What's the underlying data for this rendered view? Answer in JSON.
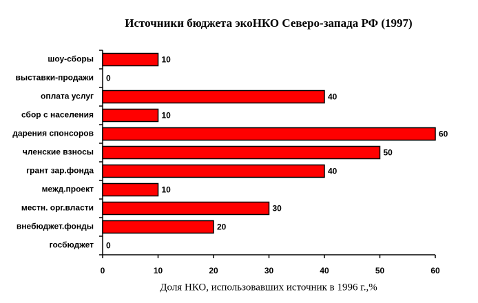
{
  "chart_data": {
    "type": "bar",
    "orientation": "horizontal",
    "title": "Источники бюджета экоНКО Северо-запада РФ (1997)",
    "x_label": "Доля НКО, использовавших источник в 1996 г.,%",
    "categories": [
      "шоу-сборы",
      "выставки-продажи",
      "оплата услуг",
      "сбор с населения",
      "дарения спонсоров",
      "членские взносы",
      "грант зар.фонда",
      "межд.проект",
      "местн. орг.власти",
      "внебюджет.фонды",
      "госбюджет"
    ],
    "values": [
      10,
      0,
      40,
      10,
      60,
      50,
      40,
      10,
      30,
      20,
      0
    ],
    "color": "#ff0000",
    "xlim": [
      0,
      60
    ],
    "xticks": [
      0,
      10,
      20,
      30,
      40,
      50,
      60
    ],
    "grid": false
  }
}
